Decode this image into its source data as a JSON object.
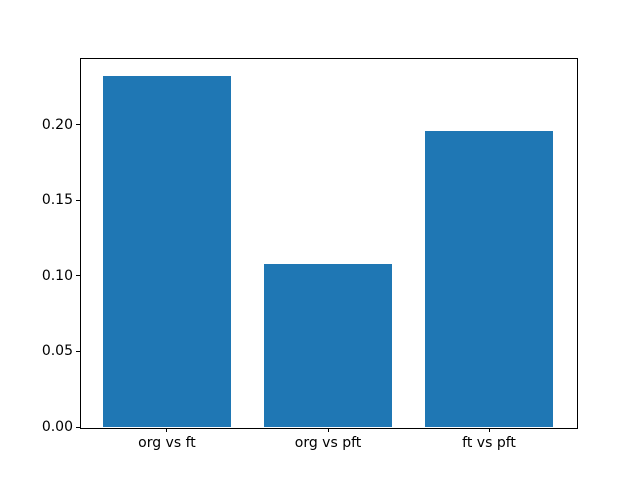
{
  "chart_data": {
    "type": "bar",
    "categories": [
      "org vs ft",
      "org vs pft",
      "ft vs pft"
    ],
    "values": [
      0.232,
      0.108,
      0.196
    ],
    "yticks": {
      "values": [
        0.0,
        0.05,
        0.1,
        0.15,
        0.2
      ],
      "labels": [
        "0.00",
        "0.05",
        "0.10",
        "0.15",
        "0.20"
      ]
    },
    "ylim": [
      0,
      0.244
    ],
    "bar_color": "#1f77b4",
    "bar_width_fraction": 0.8,
    "grid": false,
    "legend": null,
    "title": "",
    "xlabel": "",
    "ylabel": ""
  }
}
